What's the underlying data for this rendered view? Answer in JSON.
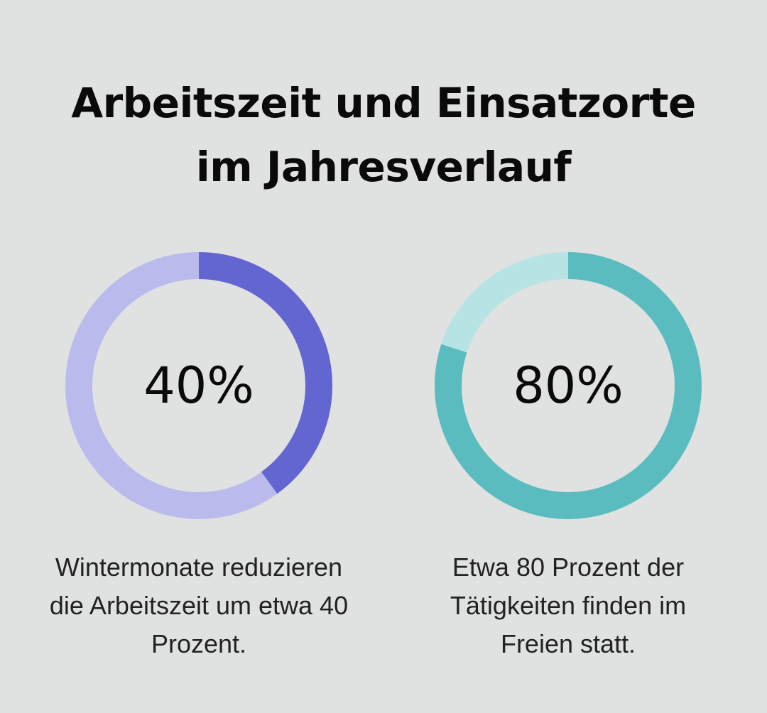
{
  "title": {
    "line1": "Arbeitszeit und Einsatzorte",
    "line2": "im Jahresverlauf"
  },
  "chart_data": [
    {
      "type": "pie",
      "variant": "donut",
      "value": 40,
      "max": 100,
      "label": "40%",
      "caption_lines": [
        "Wintermonate reduzieren",
        "die Arbeitszeit um etwa 40",
        "Prozent."
      ],
      "colors": {
        "fill": "#6366d1",
        "track": "#babbec"
      }
    },
    {
      "type": "pie",
      "variant": "donut",
      "value": 80,
      "max": 100,
      "label": "80%",
      "caption_lines": [
        "Etwa 80 Prozent der",
        "Tätigkeiten finden im",
        "Freien statt."
      ],
      "colors": {
        "fill": "#5bbcbf",
        "track": "#b8e3e5"
      }
    }
  ]
}
